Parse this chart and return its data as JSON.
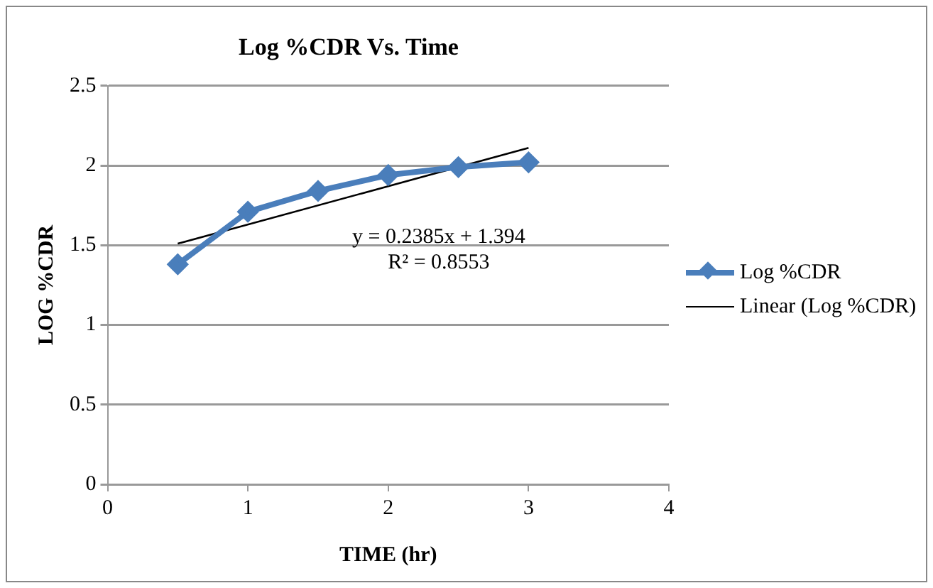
{
  "chart_data": {
    "type": "line",
    "title": "Log %CDR Vs. Time",
    "xlabel": "TIME (hr)",
    "ylabel": "LOG %CDR",
    "series": [
      {
        "name": "Log %CDR",
        "color": "#4a7ebb",
        "x": [
          0.5,
          1,
          1.5,
          2,
          2.5,
          3
        ],
        "values": [
          1.38,
          1.71,
          1.84,
          1.94,
          1.99,
          2.02
        ],
        "marker": "diamond"
      },
      {
        "name": "Linear (Log %CDR)",
        "type": "line",
        "color": "#000000",
        "x": [
          0.5,
          3
        ],
        "values": [
          1.51,
          2.11
        ],
        "marker": "none"
      }
    ],
    "annotations": [
      "y = 0.2385x + 1.394",
      "R² = 0.8553"
    ],
    "xlim": [
      0,
      4
    ],
    "xticks": [
      0,
      1,
      2,
      3,
      4
    ],
    "ylim": [
      0,
      2.5
    ],
    "yticks": [
      0,
      0.5,
      1,
      1.5,
      2,
      2.5
    ],
    "grid": "y",
    "legend": "right"
  }
}
